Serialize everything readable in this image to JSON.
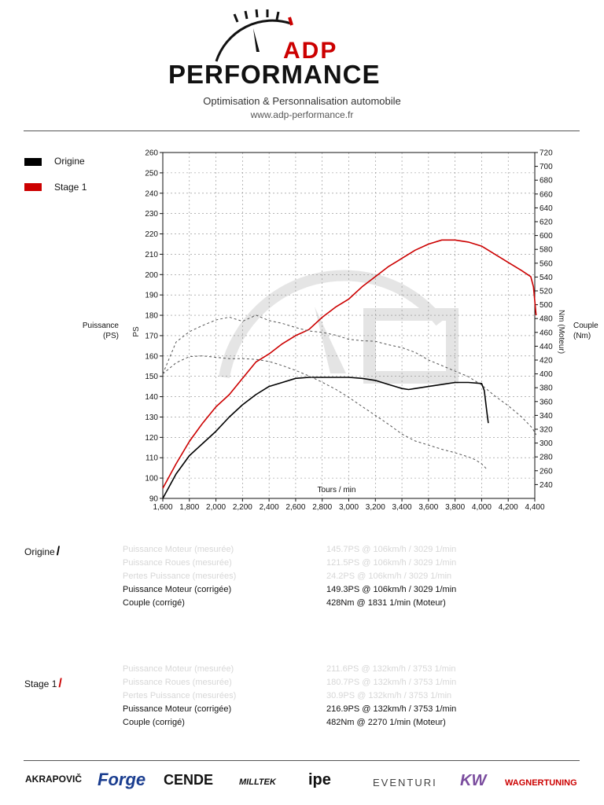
{
  "header": {
    "brand_top": "ADP",
    "brand_bottom": "PERFORMANCE",
    "tagline": "Optimisation & Personnalisation automobile",
    "website": "www.adp-performance.fr"
  },
  "legend": [
    {
      "label": "Origine",
      "color": "#000000"
    },
    {
      "label": "Stage 1",
      "color": "#cc0000"
    }
  ],
  "axes": {
    "left_label_line1": "Puissance",
    "left_label_line2": "(PS)",
    "left_unit": "PS",
    "right_label_line1": "Couple",
    "right_label_line2": "(Nm)",
    "right_unit": "Nm (Moteur)",
    "x_label": "Tours / min"
  },
  "chart_data": {
    "type": "line",
    "xlabel": "Tours / min",
    "x_ticks": [
      1600,
      1800,
      2000,
      2200,
      2400,
      2600,
      2800,
      3000,
      3200,
      3400,
      3600,
      3800,
      4000,
      4200,
      4400
    ],
    "x_tick_labels": [
      "1,600",
      "1,800",
      "2,000",
      "2,200",
      "2,400",
      "2,600",
      "2,800",
      "3,000",
      "3,200",
      "3,400",
      "3,600",
      "3,800",
      "4,000",
      "4,200",
      "4,400"
    ],
    "xlim": [
      1600,
      4400
    ],
    "y_left": {
      "label": "PS",
      "lim": [
        90,
        260
      ],
      "ticks": [
        90,
        100,
        110,
        120,
        130,
        140,
        150,
        160,
        170,
        180,
        190,
        200,
        210,
        220,
        230,
        240,
        250,
        260
      ]
    },
    "y_right": {
      "label": "Nm (Moteur)",
      "lim": [
        220,
        720
      ],
      "ticks": [
        240,
        260,
        280,
        300,
        320,
        340,
        360,
        380,
        400,
        420,
        440,
        460,
        480,
        500,
        520,
        540,
        560,
        580,
        600,
        620,
        640,
        660,
        680,
        700,
        720
      ]
    },
    "grid": true,
    "series": [
      {
        "name": "Origine",
        "measure": "power",
        "axis": "left",
        "color": "#000000",
        "style": "solid",
        "points": [
          [
            1600,
            90
          ],
          [
            1700,
            102
          ],
          [
            1800,
            111
          ],
          [
            1900,
            117
          ],
          [
            2000,
            123
          ],
          [
            2100,
            130
          ],
          [
            2200,
            136
          ],
          [
            2300,
            141
          ],
          [
            2400,
            145
          ],
          [
            2500,
            147
          ],
          [
            2600,
            149
          ],
          [
            2700,
            149.5
          ],
          [
            2800,
            149.5
          ],
          [
            2900,
            149.5
          ],
          [
            3000,
            149.5
          ],
          [
            3100,
            149
          ],
          [
            3200,
            148
          ],
          [
            3300,
            146
          ],
          [
            3400,
            144
          ],
          [
            3450,
            143.5
          ],
          [
            3500,
            144
          ],
          [
            3600,
            145
          ],
          [
            3700,
            146
          ],
          [
            3800,
            147
          ],
          [
            3900,
            147
          ],
          [
            4000,
            146.5
          ],
          [
            4020,
            143
          ],
          [
            4040,
            132
          ],
          [
            4050,
            127
          ]
        ]
      },
      {
        "name": "Stage 1",
        "measure": "power",
        "axis": "left",
        "color": "#cc0000",
        "style": "solid",
        "points": [
          [
            1600,
            95
          ],
          [
            1700,
            107
          ],
          [
            1800,
            118
          ],
          [
            1900,
            127
          ],
          [
            2000,
            135
          ],
          [
            2100,
            141
          ],
          [
            2200,
            149
          ],
          [
            2300,
            157
          ],
          [
            2400,
            161
          ],
          [
            2500,
            166
          ],
          [
            2600,
            170
          ],
          [
            2700,
            173
          ],
          [
            2800,
            179
          ],
          [
            2900,
            184
          ],
          [
            3000,
            188
          ],
          [
            3100,
            194
          ],
          [
            3200,
            199
          ],
          [
            3300,
            204
          ],
          [
            3400,
            208
          ],
          [
            3500,
            212
          ],
          [
            3600,
            215
          ],
          [
            3700,
            217
          ],
          [
            3800,
            217
          ],
          [
            3900,
            216
          ],
          [
            4000,
            214
          ],
          [
            4100,
            210
          ],
          [
            4200,
            206
          ],
          [
            4300,
            202
          ],
          [
            4370,
            199
          ],
          [
            4390,
            194
          ],
          [
            4410,
            180
          ]
        ]
      },
      {
        "name": "Origine",
        "measure": "torque",
        "axis": "right",
        "color": "#555555",
        "style": "dashed",
        "points": [
          [
            1600,
            400
          ],
          [
            1700,
            416
          ],
          [
            1800,
            425
          ],
          [
            1900,
            426
          ],
          [
            2000,
            424
          ],
          [
            2100,
            422
          ],
          [
            2200,
            422
          ],
          [
            2300,
            421
          ],
          [
            2400,
            418
          ],
          [
            2500,
            412
          ],
          [
            2600,
            405
          ],
          [
            2700,
            397
          ],
          [
            2800,
            388
          ],
          [
            2900,
            378
          ],
          [
            3000,
            366
          ],
          [
            3100,
            353
          ],
          [
            3200,
            340
          ],
          [
            3300,
            327
          ],
          [
            3400,
            313
          ],
          [
            3500,
            303
          ],
          [
            3600,
            297
          ],
          [
            3700,
            291
          ],
          [
            3800,
            286
          ],
          [
            3900,
            280
          ],
          [
            3950,
            276
          ],
          [
            4000,
            270
          ],
          [
            4040,
            262
          ]
        ]
      },
      {
        "name": "Stage 1",
        "measure": "torque",
        "axis": "right",
        "color": "#555555",
        "style": "dashed",
        "points": [
          [
            1600,
            400
          ],
          [
            1700,
            446
          ],
          [
            1800,
            461
          ],
          [
            1900,
            470
          ],
          [
            2000,
            478
          ],
          [
            2100,
            482
          ],
          [
            2200,
            476
          ],
          [
            2270,
            482
          ],
          [
            2300,
            485
          ],
          [
            2400,
            477
          ],
          [
            2500,
            473
          ],
          [
            2600,
            467
          ],
          [
            2700,
            462
          ],
          [
            2800,
            460
          ],
          [
            2900,
            456
          ],
          [
            3000,
            450
          ],
          [
            3100,
            448
          ],
          [
            3200,
            447
          ],
          [
            3300,
            442
          ],
          [
            3400,
            438
          ],
          [
            3500,
            431
          ],
          [
            3600,
            420
          ],
          [
            3700,
            412
          ],
          [
            3800,
            404
          ],
          [
            3900,
            396
          ],
          [
            4000,
            384
          ],
          [
            4100,
            368
          ],
          [
            4200,
            354
          ],
          [
            4300,
            338
          ],
          [
            4380,
            322
          ],
          [
            4410,
            312
          ]
        ]
      }
    ]
  },
  "results": {
    "origine": {
      "title": "Origine",
      "rows": [
        {
          "label": "Puissance Moteur (mesurée)",
          "value": "145.7PS @ 106km/h / 3029 1/min",
          "dim": true
        },
        {
          "label": "Puissance Roues (mesurée)",
          "value": "121.5PS @ 106km/h / 3029 1/min",
          "dim": true
        },
        {
          "label": "Pertes Puissance (mesurées)",
          "value": "24.2PS @ 106km/h / 3029 1/min",
          "dim": true
        },
        {
          "label": "Puissance Moteur (corrigée)",
          "value": "149.3PS @ 106km/h / 3029 1/min",
          "dim": false
        },
        {
          "label": "Couple (corrigé)",
          "value": "428Nm @ 1831 1/min (Moteur)",
          "dim": false
        }
      ]
    },
    "stage1": {
      "title": "Stage 1",
      "rows": [
        {
          "label": "Puissance Moteur (mesurée)",
          "value": "211.6PS @ 132km/h / 3753 1/min",
          "dim": true
        },
        {
          "label": "Puissance Roues (mesurée)",
          "value": "180.7PS @ 132km/h / 3753 1/min",
          "dim": true
        },
        {
          "label": "Pertes Puissance (mesurées)",
          "value": "30.9PS @ 132km/h / 3753 1/min",
          "dim": true
        },
        {
          "label": "Puissance Moteur (corrigée)",
          "value": "216.9PS @ 132km/h / 3753 1/min",
          "dim": false
        },
        {
          "label": "Couple (corrigé)",
          "value": "482Nm @ 2270 1/min (Moteur)",
          "dim": false
        }
      ]
    }
  },
  "footer_brands": [
    {
      "name": "AKRAPOVIČ",
      "color": "#111111"
    },
    {
      "name": "Forge",
      "color": "#1a3d8f"
    },
    {
      "name": "CENDE",
      "color": "#111111"
    },
    {
      "name": "MILLTEK",
      "color": "#111111"
    },
    {
      "name": "ipe",
      "color": "#111111"
    },
    {
      "name": "EVENTURI",
      "color": "#444444"
    },
    {
      "name": "KW",
      "color": "#7a4c9e"
    },
    {
      "name": "WAGNERTUNING",
      "color": "#cc0000"
    }
  ],
  "colors": {
    "accent": "#cc0000",
    "black": "#000000",
    "grid": "#888888"
  }
}
